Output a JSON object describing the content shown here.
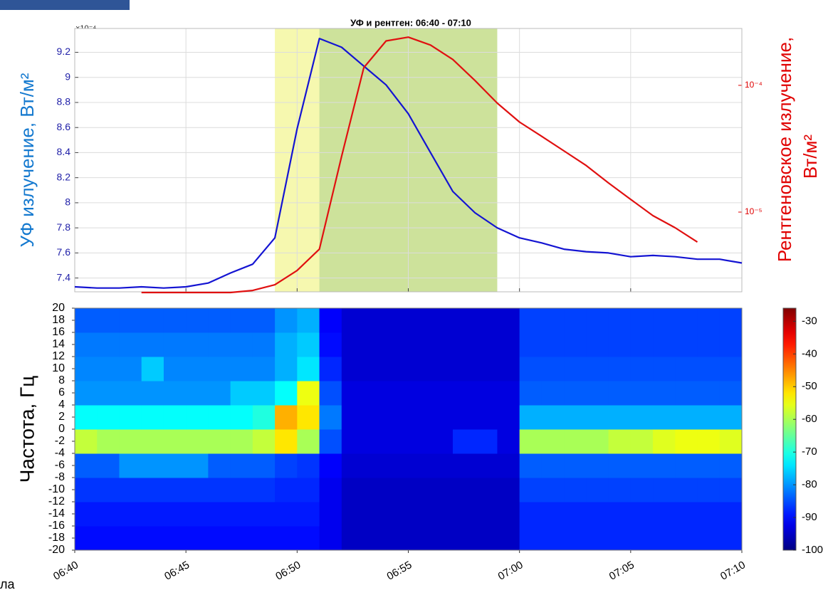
{
  "fragment_text": "ла",
  "chart_data": [
    {
      "type": "line",
      "title": "УФ и рентген: 06:40 - 07:10",
      "y_label": "УФ излучение, Вт/м²",
      "y2_label": [
        "Рентгеновское излучение,",
        "Вт/м²"
      ],
      "y_multiplier": "×10⁻⁴",
      "x": [
        "06:40",
        "06:41",
        "06:42",
        "06:43",
        "06:44",
        "06:45",
        "06:46",
        "06:47",
        "06:48",
        "06:49",
        "06:50",
        "06:51",
        "06:52",
        "06:53",
        "06:54",
        "06:55",
        "06:56",
        "06:57",
        "06:58",
        "06:59",
        "07:00",
        "07:01",
        "07:02",
        "07:03",
        "07:04",
        "07:05",
        "07:06",
        "07:07",
        "07:08",
        "07:09",
        "07:10"
      ],
      "series": [
        {
          "color": "#1414d2",
          "values": [
            7.33,
            7.32,
            7.32,
            7.33,
            7.32,
            7.33,
            7.36,
            7.44,
            7.51,
            7.72,
            8.59,
            9.31,
            9.24,
            9.09,
            8.94,
            8.71,
            8.4,
            8.09,
            7.92,
            7.8,
            7.72,
            7.68,
            7.63,
            7.61,
            7.6,
            7.57,
            7.58,
            7.57,
            7.55,
            7.55,
            7.52
          ]
        },
        {
          "color": "#e01010",
          "axis": "y2",
          "values": [
            null,
            null,
            null,
            2.32e-06,
            2.32e-06,
            2.32e-06,
            2.32e-06,
            2.32e-06,
            2.41e-06,
            2.67e-06,
            3.46e-06,
            5.1e-06,
            2.75e-05,
            0.000138,
            0.000224,
            0.00024,
            0.000208,
            0.00016,
            0.000109,
            7.24e-05,
            5.13e-05,
            3.96e-05,
            3.04e-05,
            2.33e-05,
            1.7e-05,
            1.26e-05,
            9.37e-06,
            7.52e-06,
            5.8e-06,
            null,
            null
          ]
        }
      ],
      "xlim": [
        "06:40",
        "07:10"
      ],
      "ylim": [
        7.29,
        9.39
      ],
      "yticks": [
        7.4,
        7.6,
        7.8,
        8,
        8.2,
        8.4,
        8.6,
        8.8,
        9,
        9.2
      ],
      "y2lim": [
        2.35e-06,
        0.000281
      ],
      "y2ticks": [
        {
          "value": 1e-05,
          "label": "10⁻⁵"
        },
        {
          "value": 0.0001,
          "label": "10⁻⁴"
        }
      ],
      "y2log": true,
      "grid": true,
      "highlights": [
        {
          "start": "06:49",
          "end": "06:51",
          "color": "#f5f7a6"
        },
        {
          "start": "06:51",
          "end": "06:59",
          "color": "#c8df90"
        }
      ]
    },
    {
      "type": "heatmap",
      "y_label": "Частота, Гц",
      "xlim": [
        "06:40",
        "07:10"
      ],
      "xticks": [
        "06:40",
        "06:45",
        "06:50",
        "06:55",
        "07:00",
        "07:05",
        "07:10"
      ],
      "ylim": [
        -20,
        20
      ],
      "yticks": [
        -20,
        -18,
        -16,
        -14,
        -12,
        -10,
        -8,
        -6,
        -4,
        -2,
        0,
        2,
        4,
        6,
        8,
        10,
        12,
        14,
        16,
        18,
        20
      ],
      "xbins": [
        "06:40",
        "06:41",
        "06:42",
        "06:43",
        "06:44",
        "06:45",
        "06:46",
        "06:47",
        "06:48",
        "06:49",
        "06:50",
        "06:51",
        "06:52",
        "06:53",
        "06:54",
        "06:55",
        "06:56",
        "06:57",
        "06:58",
        "06:59",
        "07:00",
        "07:01",
        "07:02",
        "07:03",
        "07:04",
        "07:05",
        "07:06",
        "07:07",
        "07:08",
        "07:09",
        "07:10"
      ],
      "ybins": [
        -20,
        -16,
        -12,
        -8,
        -4,
        0,
        4,
        8,
        12,
        16,
        20
      ],
      "z": [
        [
          -90,
          -90,
          -90,
          -90,
          -90,
          -90,
          -90,
          -90,
          -90,
          -90,
          -90,
          -92,
          -95,
          -95,
          -95,
          -95,
          -95,
          -95,
          -95,
          -95,
          -88,
          -88,
          -88,
          -88,
          -88,
          -88,
          -88,
          -88,
          -88,
          -88
        ],
        [
          -89,
          -89,
          -89,
          -89,
          -89,
          -89,
          -89,
          -89,
          -89,
          -89,
          -89,
          -92,
          -95,
          -95,
          -95,
          -95,
          -95,
          -95,
          -95,
          -95,
          -88,
          -88,
          -88,
          -88,
          -88,
          -88,
          -88,
          -88,
          -88,
          -88
        ],
        [
          -87,
          -87,
          -87,
          -87,
          -87,
          -87,
          -87,
          -87,
          -87,
          -88,
          -88,
          -92,
          -95,
          -95,
          -95,
          -95,
          -95,
          -95,
          -95,
          -95,
          -86,
          -86,
          -86,
          -86,
          -86,
          -86,
          -86,
          -86,
          -86,
          -86
        ],
        [
          -84,
          -84,
          -80,
          -80,
          -80,
          -80,
          -84,
          -84,
          -84,
          -86,
          -87,
          -91,
          -94,
          -94,
          -94,
          -94,
          -94,
          -94,
          -94,
          -94,
          -84,
          -84,
          -84,
          -84,
          -84,
          -84,
          -84,
          -84,
          -84,
          -84
        ],
        [
          -58,
          -60,
          -60,
          -60,
          -60,
          -60,
          -60,
          -60,
          -58,
          -52,
          -60,
          -85,
          -93,
          -93,
          -93,
          -93,
          -93,
          -88,
          -88,
          -93,
          -60,
          -60,
          -60,
          -60,
          -58,
          -58,
          -56,
          -55,
          -55,
          -56
        ],
        [
          -72,
          -72,
          -72,
          -72,
          -72,
          -72,
          -72,
          -72,
          -70,
          -48,
          -52,
          -82,
          -93,
          -93,
          -93,
          -93,
          -93,
          -93,
          -93,
          -93,
          -78,
          -78,
          -78,
          -78,
          -78,
          -78,
          -78,
          -78,
          -78,
          -78
        ],
        [
          -80,
          -80,
          -80,
          -80,
          -80,
          -80,
          -80,
          -76,
          -76,
          -72,
          -55,
          -85,
          -93,
          -93,
          -93,
          -93,
          -93,
          -93,
          -93,
          -93,
          -84,
          -84,
          -84,
          -84,
          -84,
          -84,
          -84,
          -84,
          -84,
          -84
        ],
        [
          -81,
          -81,
          -81,
          -76,
          -81,
          -81,
          -81,
          -81,
          -81,
          -78,
          -74,
          -88,
          -94,
          -94,
          -94,
          -94,
          -94,
          -94,
          -94,
          -94,
          -85,
          -85,
          -85,
          -85,
          -85,
          -85,
          -85,
          -85,
          -85,
          -85
        ],
        [
          -82,
          -82,
          -82,
          -82,
          -82,
          -82,
          -82,
          -82,
          -82,
          -78,
          -76,
          -90,
          -94,
          -94,
          -94,
          -94,
          -94,
          -94,
          -94,
          -94,
          -86,
          -86,
          -86,
          -86,
          -86,
          -86,
          -86,
          -86,
          -86,
          -86
        ],
        [
          -84,
          -84,
          -84,
          -84,
          -84,
          -84,
          -84,
          -84,
          -84,
          -80,
          -78,
          -91,
          -94,
          -94,
          -94,
          -94,
          -94,
          -94,
          -94,
          -94,
          -86,
          -86,
          -86,
          -86,
          -86,
          -86,
          -86,
          -86,
          -86,
          -86
        ]
      ],
      "clim": [
        -100,
        -26
      ],
      "cticks": [
        -100,
        -90,
        -80,
        -70,
        -60,
        -50,
        -40,
        -30
      ],
      "colormap": "jet"
    }
  ]
}
